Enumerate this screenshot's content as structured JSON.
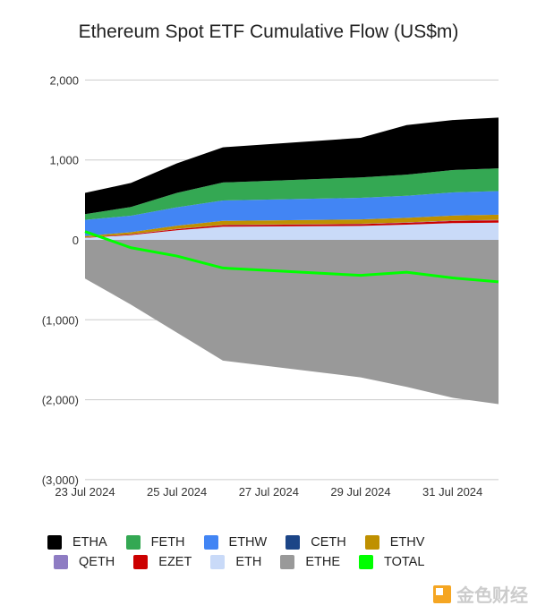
{
  "chart_data": {
    "type": "area",
    "stacked": true,
    "title": "Ethereum Spot ETF Cumulative Flow (US$m)",
    "xlabel": "",
    "ylabel": "",
    "x": [
      "2024-07-23",
      "2024-07-24",
      "2024-07-25",
      "2024-07-26",
      "2024-07-29",
      "2024-07-30",
      "2024-07-31",
      "2024-08-01"
    ],
    "x_tick_labels": [
      "23 Jul 2024",
      "25 Jul 2024",
      "27 Jul 2024",
      "29 Jul 2024",
      "31 Jul 2024"
    ],
    "y_tick_labels": [
      "2,000",
      "1,000",
      "0",
      "(1,000)",
      "(2,000)",
      "(3,000)"
    ],
    "y_ticks": [
      2000,
      1000,
      0,
      -1000,
      -2000,
      -3000
    ],
    "ylim": [
      -3000,
      2000
    ],
    "grid": true,
    "legend_position": "bottom",
    "series": [
      {
        "name": "ETHA",
        "color": "#000000",
        "values": [
          266,
          300,
          370,
          440,
          495,
          620,
          625,
          635
        ]
      },
      {
        "name": "FETH",
        "color": "#34a853",
        "values": [
          71,
          110,
          180,
          225,
          255,
          265,
          280,
          285
        ]
      },
      {
        "name": "ETHW",
        "color": "#4285f4",
        "values": [
          204,
          205,
          230,
          255,
          270,
          275,
          290,
          295
        ]
      },
      {
        "name": "CETH",
        "color": "#1c4587",
        "values": [
          0,
          0,
          0,
          0,
          0,
          0,
          0,
          0
        ]
      },
      {
        "name": "ETHV",
        "color": "#bf9000",
        "values": [
          16,
          25,
          40,
          50,
          55,
          58,
          62,
          65
        ]
      },
      {
        "name": "QETH",
        "color": "#8e7cc3",
        "values": [
          1,
          2,
          3,
          3,
          4,
          4,
          5,
          5
        ]
      },
      {
        "name": "EZET",
        "color": "#cc0000",
        "values": [
          5,
          10,
          15,
          20,
          22,
          24,
          27,
          30
        ]
      },
      {
        "name": "ETH",
        "color": "#c9daf8",
        "values": [
          25,
          60,
          120,
          165,
          175,
          190,
          210,
          215
        ]
      },
      {
        "name": "ETHE",
        "color": "#999999",
        "values": [
          -484,
          -810,
          -1160,
          -1510,
          -1720,
          -1840,
          -1975,
          -2055
        ]
      },
      {
        "name": "TOTAL",
        "color": "#00ff00",
        "type": "line",
        "values": [
          104,
          -98,
          -202,
          -352,
          -444,
          -404,
          -476,
          -525
        ]
      }
    ]
  },
  "watermark": "金色财经"
}
